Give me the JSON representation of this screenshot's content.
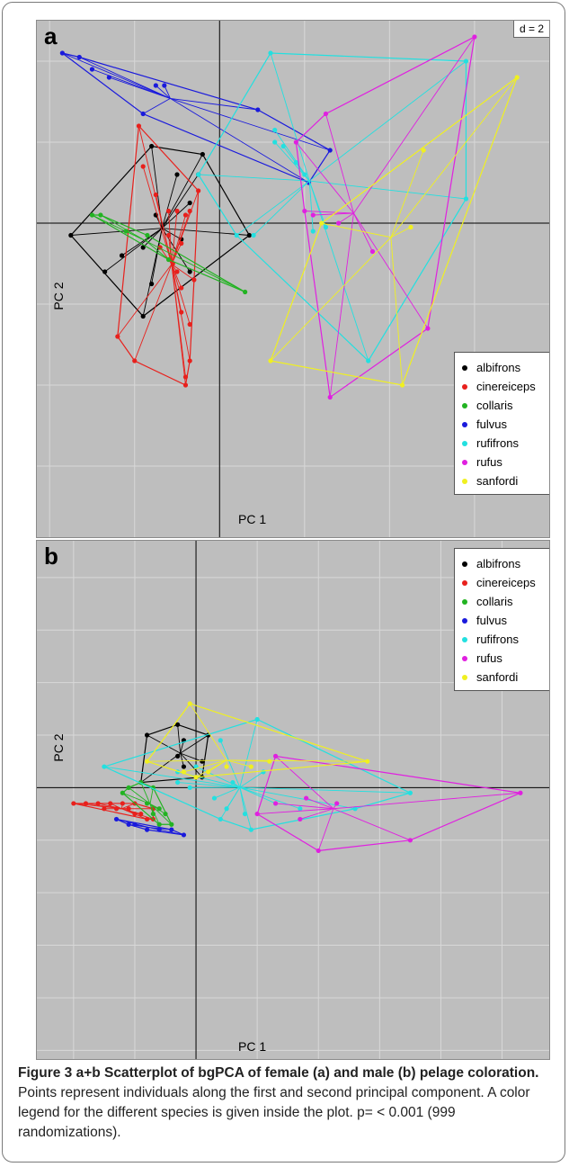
{
  "panel_a": {
    "letter": "a",
    "d_label": "d = 2",
    "xlabel": "PC 1",
    "ylabel": "PC 2"
  },
  "panel_b": {
    "letter": "b",
    "xlabel": "PC 1",
    "ylabel": "PC 2"
  },
  "legend": [
    {
      "name": "albifrons",
      "color": "#000000"
    },
    {
      "name": "cinereiceps",
      "color": "#e8201c"
    },
    {
      "name": "collaris",
      "color": "#22b322"
    },
    {
      "name": "fulvus",
      "color": "#1a1adc"
    },
    {
      "name": "rufifrons",
      "color": "#22e0e0"
    },
    {
      "name": "rufus",
      "color": "#e020e0"
    },
    {
      "name": "sanfordi",
      "color": "#f0f020"
    }
  ],
  "caption": {
    "title": "Figure 3 a+b Scatterplot of bgPCA of female (a) and male (b) pelage coloration.",
    "text": " Points represent individuals along the first and second principal component. A color legend for the different species is given inside the plot. p= < 0.001 (999 randomizations)."
  },
  "chart_data": [
    {
      "type": "scatter",
      "title": "",
      "xlabel": "PC 1",
      "ylabel": "PC 2",
      "grid": true,
      "grid_step": 2,
      "xlim": [
        -4.3,
        7.8
      ],
      "ylim": [
        -7.8,
        5.0
      ],
      "series": [
        {
          "name": "albifrons",
          "color": "#000000",
          "points": [
            [
              -3.5,
              -0.3
            ],
            [
              -2.7,
              -1.2
            ],
            [
              -2.3,
              -0.8
            ],
            [
              -1.8,
              -0.6
            ],
            [
              -1.6,
              -1.5
            ],
            [
              -1.6,
              1.9
            ],
            [
              -1.0,
              1.2
            ],
            [
              -0.9,
              -0.4
            ],
            [
              -0.7,
              -1.2
            ],
            [
              -0.7,
              0.5
            ],
            [
              -0.5,
              1.2
            ],
            [
              -0.4,
              1.7
            ],
            [
              0.7,
              -0.3
            ],
            [
              -1.8,
              -2.3
            ],
            [
              -1.5,
              0.2
            ]
          ]
        },
        {
          "name": "cinereiceps",
          "color": "#e8201c",
          "points": [
            [
              -2.4,
              -2.8
            ],
            [
              -2.0,
              -3.4
            ],
            [
              -1.9,
              2.4
            ],
            [
              -1.8,
              1.4
            ],
            [
              -1.5,
              0.7
            ],
            [
              -1.4,
              -0.6
            ],
            [
              -1.2,
              0.3
            ],
            [
              -1.2,
              -0.3
            ],
            [
              -1.0,
              -1.2
            ],
            [
              -1.1,
              -1.0
            ],
            [
              -0.9,
              -0.5
            ],
            [
              -1.0,
              0.3
            ],
            [
              -0.8,
              0.2
            ],
            [
              -0.7,
              0.3
            ],
            [
              -0.9,
              -1.6
            ],
            [
              -0.7,
              -2.5
            ],
            [
              -0.5,
              0.8
            ],
            [
              -0.9,
              -2.2
            ],
            [
              -0.7,
              -3.4
            ],
            [
              -0.6,
              -1.4
            ],
            [
              -0.8,
              -4.0
            ],
            [
              -0.8,
              -3.8
            ]
          ]
        },
        {
          "name": "collaris",
          "color": "#22b322",
          "points": [
            [
              -3.0,
              0.2
            ],
            [
              -2.8,
              0.2
            ],
            [
              -2.2,
              -0.2
            ],
            [
              -1.7,
              -0.3
            ],
            [
              -1.2,
              -0.9
            ],
            [
              0.6,
              -1.7
            ]
          ]
        },
        {
          "name": "fulvus",
          "color": "#1a1adc",
          "points": [
            [
              -3.7,
              4.2
            ],
            [
              -3.3,
              4.1
            ],
            [
              -3.0,
              3.8
            ],
            [
              -2.6,
              3.6
            ],
            [
              -1.8,
              2.7
            ],
            [
              -1.5,
              3.4
            ],
            [
              -1.3,
              3.4
            ],
            [
              0.9,
              2.8
            ],
            [
              2.6,
              1.8
            ],
            [
              2.1,
              1.0
            ]
          ]
        },
        {
          "name": "rufifrons",
          "color": "#22e0e0",
          "points": [
            [
              1.2,
              4.2
            ],
            [
              1.3,
              2.3
            ],
            [
              1.3,
              2.0
            ],
            [
              1.5,
              1.9
            ],
            [
              1.8,
              1.5
            ],
            [
              2.0,
              1.2
            ],
            [
              -0.5,
              1.2
            ],
            [
              0.4,
              -0.3
            ],
            [
              0.8,
              -0.3
            ],
            [
              2.2,
              -0.2
            ],
            [
              2.5,
              -0.1
            ],
            [
              5.8,
              4.0
            ],
            [
              5.8,
              0.6
            ],
            [
              3.5,
              -3.4
            ]
          ]
        },
        {
          "name": "rufus",
          "color": "#e020e0",
          "points": [
            [
              1.8,
              2.0
            ],
            [
              2.5,
              2.7
            ],
            [
              2.0,
              0.3
            ],
            [
              2.2,
              0.2
            ],
            [
              2.8,
              0.0
            ],
            [
              3.6,
              -0.7
            ],
            [
              4.9,
              -2.6
            ],
            [
              2.6,
              -4.3
            ],
            [
              6.0,
              4.6
            ]
          ]
        },
        {
          "name": "sanfordi",
          "color": "#f0f020",
          "points": [
            [
              7.0,
              3.6
            ],
            [
              4.8,
              1.8
            ],
            [
              4.5,
              -0.1
            ],
            [
              2.4,
              0.0
            ],
            [
              1.2,
              -3.4
            ],
            [
              4.3,
              -4.0
            ]
          ]
        }
      ]
    },
    {
      "type": "scatter",
      "title": "",
      "xlabel": "PC 1",
      "ylabel": "PC 2",
      "grid": true,
      "grid_step": 1,
      "xlim": [
        -2.6,
        5.8
      ],
      "ylim": [
        -5.2,
        4.7
      ],
      "series": [
        {
          "name": "albifrons",
          "color": "#000000",
          "points": [
            [
              -0.8,
              1.0
            ],
            [
              -0.3,
              1.2
            ],
            [
              0.2,
              1.0
            ],
            [
              -0.2,
              0.9
            ],
            [
              -0.3,
              0.6
            ],
            [
              -0.2,
              0.4
            ],
            [
              0.1,
              0.5
            ],
            [
              0.1,
              0.2
            ],
            [
              -0.9,
              0.1
            ]
          ]
        },
        {
          "name": "cinereiceps",
          "color": "#e8201c",
          "points": [
            [
              -2.0,
              -0.3
            ],
            [
              -1.8,
              -0.3
            ],
            [
              -1.6,
              -0.3
            ],
            [
              -1.5,
              -0.4
            ],
            [
              -1.4,
              -0.3
            ],
            [
              -1.3,
              -0.4
            ],
            [
              -1.2,
              -0.3
            ],
            [
              -1.1,
              -0.4
            ],
            [
              -1.0,
              -0.5
            ],
            [
              -1.0,
              -0.3
            ],
            [
              -0.9,
              -0.5
            ],
            [
              -0.8,
              -0.6
            ],
            [
              -0.7,
              -0.4
            ],
            [
              -0.7,
              -0.6
            ]
          ]
        },
        {
          "name": "collaris",
          "color": "#22b322",
          "points": [
            [
              -1.2,
              -0.1
            ],
            [
              -1.1,
              0.0
            ],
            [
              -0.9,
              0.1
            ],
            [
              -0.7,
              0.0
            ],
            [
              -0.8,
              -0.3
            ],
            [
              -0.7,
              -0.5
            ],
            [
              -0.6,
              -0.4
            ],
            [
              -0.5,
              -0.5
            ],
            [
              -0.4,
              -0.7
            ],
            [
              -0.6,
              -0.7
            ]
          ]
        },
        {
          "name": "fulvus",
          "color": "#1a1adc",
          "points": [
            [
              -1.3,
              -0.6
            ],
            [
              -1.1,
              -0.7
            ],
            [
              -1.0,
              -0.7
            ],
            [
              -0.8,
              -0.8
            ],
            [
              -0.6,
              -0.8
            ],
            [
              -0.4,
              -0.8
            ],
            [
              -0.2,
              -0.9
            ]
          ]
        },
        {
          "name": "rufifrons",
          "color": "#22e0e0",
          "points": [
            [
              -1.5,
              0.4
            ],
            [
              -0.3,
              0.3
            ],
            [
              0.0,
              0.4
            ],
            [
              0.4,
              0.9
            ],
            [
              1.0,
              1.3
            ],
            [
              1.1,
              0.3
            ],
            [
              0.6,
              0.1
            ],
            [
              0.3,
              -0.2
            ],
            [
              0.5,
              -0.4
            ],
            [
              0.8,
              -0.5
            ],
            [
              1.3,
              -0.3
            ],
            [
              1.7,
              -0.4
            ],
            [
              2.6,
              -0.4
            ],
            [
              3.5,
              -0.1
            ],
            [
              -0.3,
              0.1
            ],
            [
              -0.1,
              0.0
            ],
            [
              0.9,
              -0.8
            ],
            [
              0.4,
              -0.6
            ]
          ]
        },
        {
          "name": "rufus",
          "color": "#e020e0",
          "points": [
            [
              1.3,
              0.6
            ],
            [
              1.0,
              -0.5
            ],
            [
              1.3,
              -0.3
            ],
            [
              1.8,
              -0.2
            ],
            [
              2.3,
              -0.3
            ],
            [
              1.7,
              -0.6
            ],
            [
              2.0,
              -1.2
            ],
            [
              3.5,
              -1.0
            ],
            [
              5.3,
              -0.1
            ]
          ]
        },
        {
          "name": "sanfordi",
          "color": "#f0f020",
          "points": [
            [
              -0.1,
              1.6
            ],
            [
              -0.8,
              0.5
            ],
            [
              -0.2,
              0.3
            ],
            [
              0.0,
              0.2
            ],
            [
              0.2,
              0.3
            ],
            [
              0.5,
              0.4
            ],
            [
              0.9,
              0.4
            ],
            [
              1.2,
              0.5
            ],
            [
              2.8,
              0.5
            ]
          ]
        }
      ]
    }
  ]
}
